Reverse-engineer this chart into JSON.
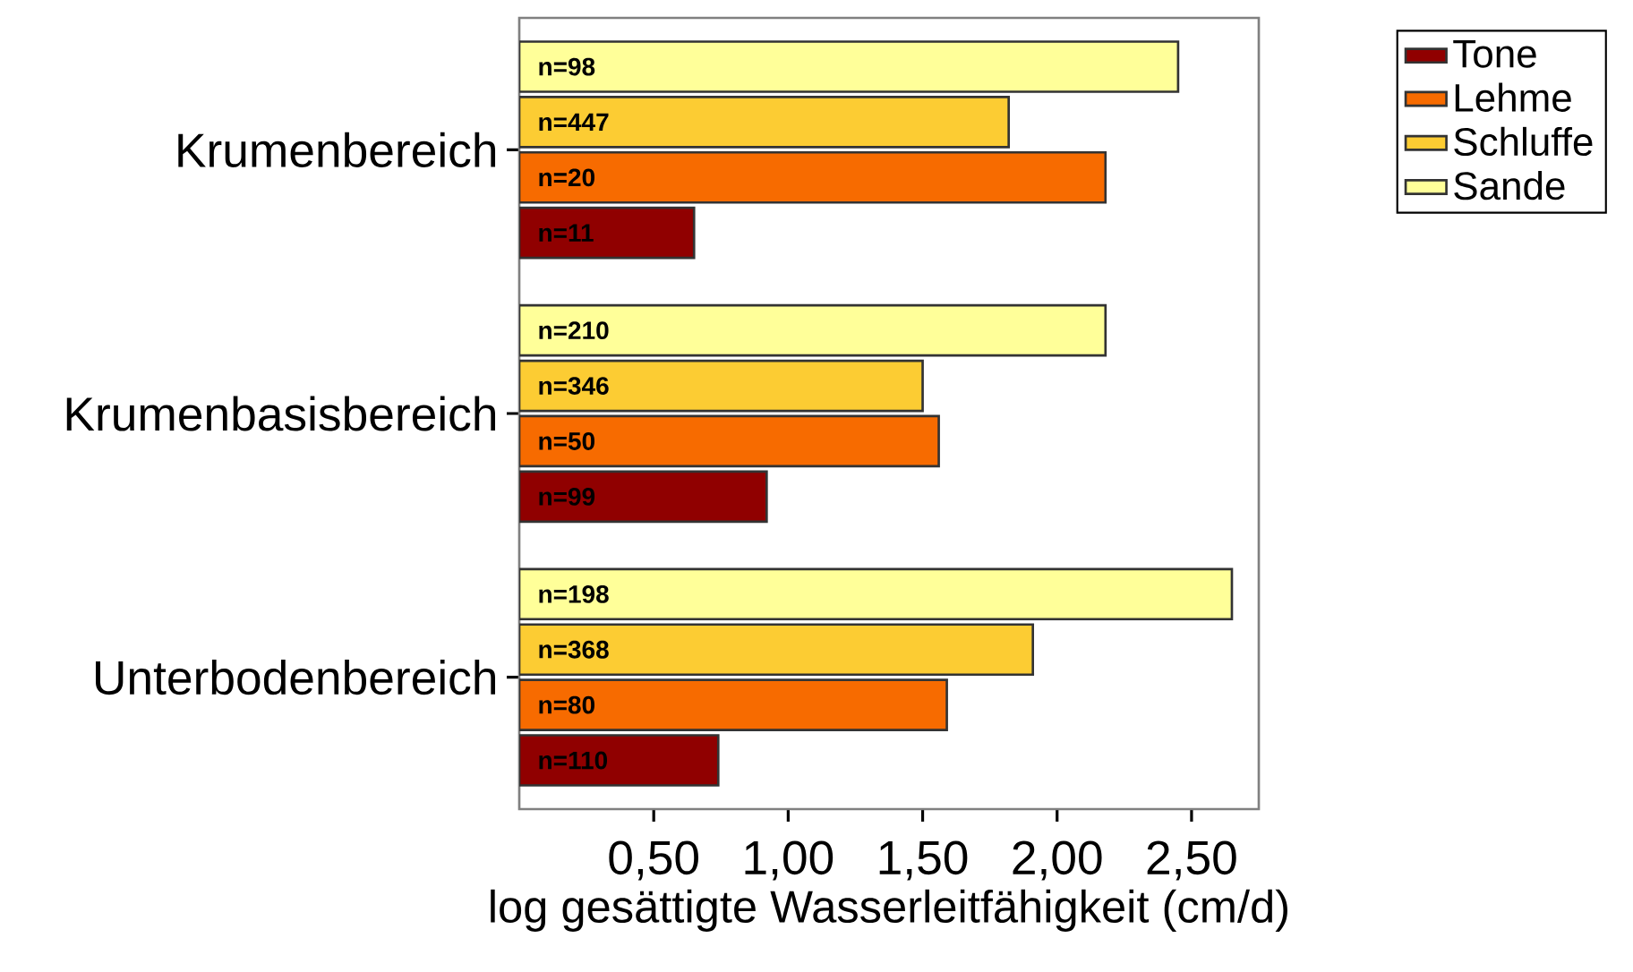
{
  "chart_data": {
    "type": "bar",
    "orientation": "horizontal",
    "categories": [
      "Krumenbereich",
      "Krumenbasisbereich",
      "Unterbodenbereich"
    ],
    "xlabel": "log gesättigte Wasserleitfähigkeit (cm/d)",
    "xlim": [
      0,
      2.75
    ],
    "xticks": [
      {
        "value": 0.5,
        "label": "0,50"
      },
      {
        "value": 1.0,
        "label": "1,00"
      },
      {
        "value": 1.5,
        "label": "1,50"
      },
      {
        "value": 2.0,
        "label": "2,00"
      },
      {
        "value": 2.5,
        "label": "2,50"
      }
    ],
    "series": [
      {
        "name": "Tone",
        "color": "#900000",
        "values": [
          0.65,
          0.92,
          0.74
        ]
      },
      {
        "name": "Lehme",
        "color": "#f76b00",
        "values": [
          2.18,
          1.56,
          1.59
        ]
      },
      {
        "name": "Schluffe",
        "color": "#fccc33",
        "values": [
          1.82,
          1.5,
          1.91
        ]
      },
      {
        "name": "Sande",
        "color": "#ffff99",
        "values": [
          2.45,
          2.18,
          2.65
        ]
      }
    ],
    "annotations": [
      "n=11",
      "n=99",
      "n=110",
      "n=20",
      "n=50",
      "n=80",
      "n=447",
      "n=346",
      "n=368",
      "n=98",
      "n=210",
      "n=198"
    ],
    "legend": "top right",
    "grid": false
  }
}
